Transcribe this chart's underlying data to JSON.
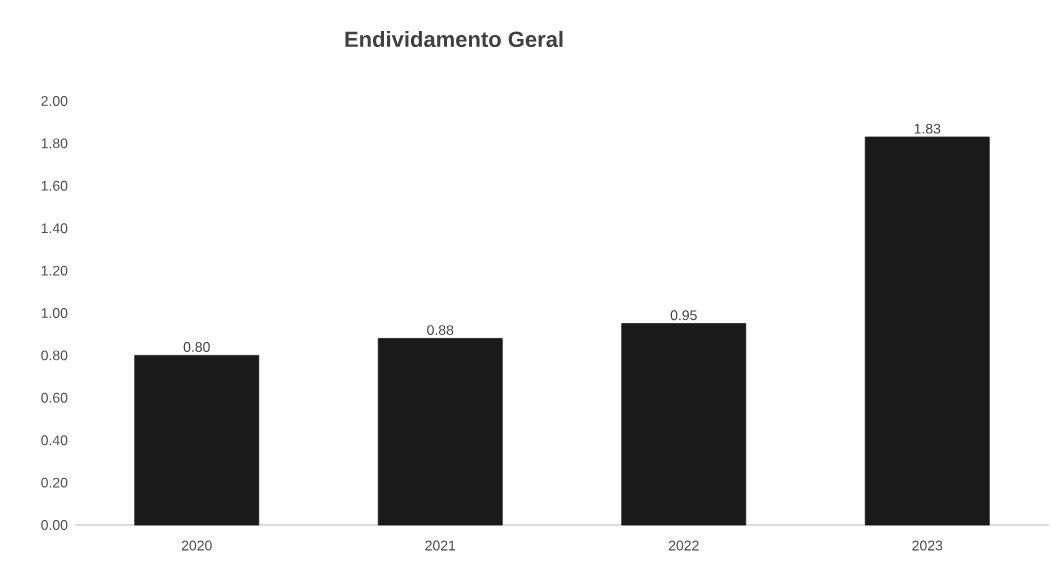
{
  "chart_data": {
    "type": "bar",
    "title": "Endividamento Geral",
    "categories": [
      "2020",
      "2021",
      "2022",
      "2023"
    ],
    "values": [
      0.8,
      0.88,
      0.95,
      1.83
    ],
    "color": "#1a1a1a",
    "value_labels": [
      "0.80",
      "0.88",
      "0.95",
      "1.83"
    ],
    "ylim": [
      0,
      2
    ],
    "yticks": [
      {
        "value": 0,
        "label": "0.00"
      },
      {
        "value": 0.2,
        "label": "0.20"
      },
      {
        "value": 0.4,
        "label": "0.40"
      },
      {
        "value": 0.6,
        "label": "0.60"
      },
      {
        "value": 0.8,
        "label": "0.80"
      },
      {
        "value": 1,
        "label": "1.00"
      },
      {
        "value": 1.2,
        "label": "1.20"
      },
      {
        "value": 1.4,
        "label": "1.40"
      },
      {
        "value": 1.6,
        "label": "1.60"
      },
      {
        "value": 1.8,
        "label": "1.80"
      },
      {
        "value": 2,
        "label": "2.00"
      }
    ]
  }
}
